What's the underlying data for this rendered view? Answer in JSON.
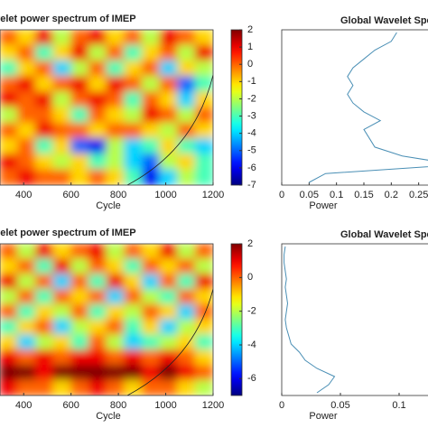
{
  "chart_data": [
    {
      "type": "heatmap",
      "title": "Wavelet power spectrum of IMEP",
      "xlabel": "Cycle",
      "xlim": [
        300,
        1200
      ],
      "xticks": [
        400,
        600,
        800,
        1000,
        1200
      ],
      "zlim": [
        -7,
        2
      ],
      "zticks": [
        2,
        1,
        0,
        -1,
        -2,
        -3,
        -4,
        -5,
        -6,
        -7
      ],
      "colormap": "jet",
      "z": [
        [
          0,
          -1,
          1,
          -2,
          0,
          1,
          -1,
          0,
          -2,
          1,
          0,
          -1
        ],
        [
          -1,
          0,
          -3,
          -1,
          1,
          -2,
          0,
          -3,
          -1,
          0,
          -2,
          1
        ],
        [
          -3,
          -1,
          0,
          -4,
          -2,
          0,
          -3,
          -1,
          0,
          -4,
          -1,
          -2
        ],
        [
          0,
          1,
          -1,
          0,
          1,
          -1,
          1,
          0,
          -2,
          0,
          -5,
          -3
        ],
        [
          1,
          0,
          1,
          -2,
          0,
          1,
          0,
          -3,
          0,
          -1,
          -4,
          -1
        ],
        [
          -2,
          0,
          0,
          -1,
          -3,
          0,
          -1,
          -2,
          1,
          0,
          -2,
          0
        ],
        [
          0,
          -1,
          1,
          0,
          0,
          -1,
          0,
          0,
          -1,
          -2,
          0,
          -1
        ],
        [
          -1,
          0,
          -3,
          -1,
          -5,
          -6,
          -2,
          -4,
          -3,
          -1,
          -3,
          -4
        ],
        [
          1,
          0,
          -1,
          -2,
          -1,
          -3,
          -2,
          -4,
          -5,
          -2,
          -1,
          -3
        ],
        [
          0,
          1,
          0,
          0,
          -1,
          0,
          -1,
          -3,
          -6,
          -4,
          -2,
          -3
        ]
      ]
    },
    {
      "type": "line",
      "title": "Global Wavelet Spectrum",
      "xlabel": "Power",
      "color": "#4a8fb5",
      "xlim": [
        0,
        0.3
      ],
      "xticks": [
        0,
        0.05,
        0.1,
        0.15,
        0.2,
        0.25
      ],
      "values": [
        0.21,
        0.2,
        0.17,
        0.15,
        0.13,
        0.12,
        0.13,
        0.12,
        0.13,
        0.15,
        0.18,
        0.15,
        0.16,
        0.17,
        0.22,
        0.32,
        0.08,
        0.05
      ]
    },
    {
      "type": "heatmap",
      "title": "Wavelet power spectrum of IMEP",
      "xlabel": "Cycle",
      "xlim": [
        300,
        1200
      ],
      "xticks": [
        400,
        600,
        800,
        1000,
        1200
      ],
      "zlim": [
        -7,
        2
      ],
      "zticks": [
        2,
        0,
        -2,
        -4,
        -6
      ],
      "colormap": "jet",
      "z": [
        [
          0,
          -2,
          1,
          -1,
          0,
          1,
          -2,
          0,
          -1,
          1,
          -2,
          0
        ],
        [
          -1,
          0,
          -3,
          1,
          -2,
          0,
          -1,
          -3,
          0,
          -1,
          0,
          -2
        ],
        [
          1,
          -2,
          0,
          -4,
          0,
          -3,
          1,
          -1,
          -4,
          0,
          -3,
          1
        ],
        [
          -2,
          0,
          -3,
          0,
          -1,
          0,
          -4,
          0,
          -2,
          -3,
          0,
          -1
        ],
        [
          0,
          -3,
          -1,
          -2,
          0,
          -3,
          -1,
          -2,
          0,
          -1,
          -4,
          0
        ],
        [
          -3,
          -1,
          0,
          -4,
          -2,
          -1,
          0,
          -3,
          -1,
          -4,
          -2,
          -1
        ],
        [
          -1,
          -4,
          -2,
          -1,
          -3,
          0,
          -2,
          -4,
          -3,
          -2,
          -1,
          -3
        ],
        [
          1,
          0,
          1,
          0,
          1,
          1,
          0,
          1,
          0,
          1,
          0,
          -1
        ],
        [
          2,
          2,
          1,
          2,
          2,
          2,
          2,
          2,
          1,
          2,
          1,
          0
        ],
        [
          1,
          0,
          0,
          -1,
          0,
          1,
          0,
          -1,
          0,
          0,
          -1,
          -2
        ]
      ]
    },
    {
      "type": "line",
      "title": "Global Wavelet Spectrum",
      "xlabel": "Power",
      "color": "#4a8fb5",
      "xlim": [
        0,
        0.14
      ],
      "xticks": [
        0,
        0.05,
        0.1
      ],
      "values": [
        0.003,
        0.002,
        0.002,
        0.003,
        0.004,
        0.003,
        0.004,
        0.005,
        0.004,
        0.003,
        0.004,
        0.006,
        0.008,
        0.015,
        0.02,
        0.03,
        0.045,
        0.04,
        0.03
      ]
    }
  ]
}
